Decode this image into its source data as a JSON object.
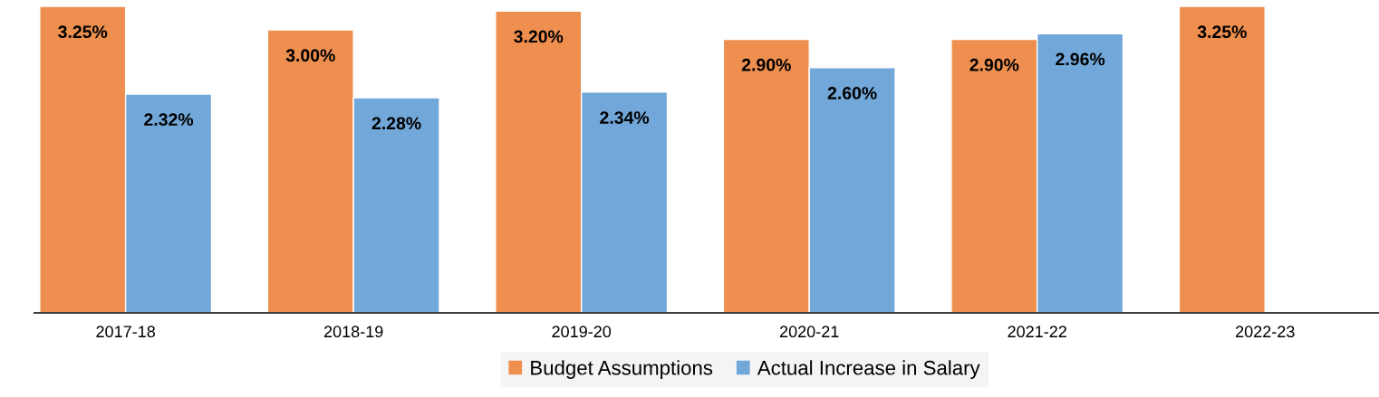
{
  "chart_data": {
    "type": "bar",
    "categories": [
      "2017-18",
      "2018-19",
      "2019-20",
      "2020-21",
      "2021-22",
      "2022-23"
    ],
    "series": [
      {
        "name": "Budget Assumptions",
        "color": "#ef8f4f",
        "values": [
          3.25,
          3.0,
          3.2,
          2.9,
          2.9,
          3.25
        ],
        "value_labels": [
          "3.25%",
          "3.00%",
          "3.20%",
          "2.90%",
          "2.90%",
          "3.25%"
        ]
      },
      {
        "name": "Actual Increase in Salary",
        "color": "#72a7d9",
        "values": [
          2.32,
          2.28,
          2.34,
          2.6,
          2.96,
          null
        ],
        "value_labels": [
          "2.32%",
          "2.28%",
          "2.34%",
          "2.60%",
          "2.96%",
          null
        ]
      }
    ],
    "legend": "bottom"
  }
}
